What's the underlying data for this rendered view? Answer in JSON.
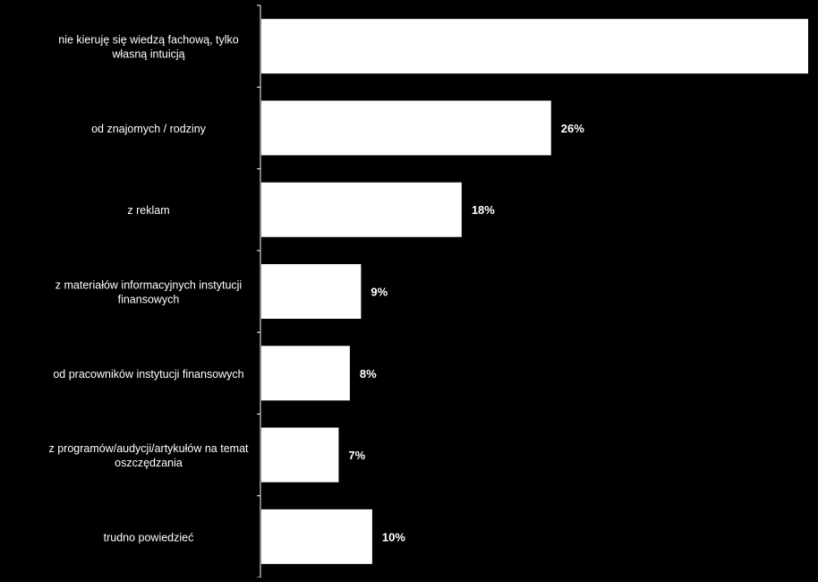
{
  "chart_data": {
    "type": "bar",
    "orientation": "horizontal",
    "categories": [
      "nie kieruję się wiedzą fachową, tylko własną intuicją",
      "od znajomych / rodziny",
      "z reklam",
      "z materiałów informacyjnych instytucji finansowych",
      "od pracowników instytucji finansowych",
      "z programów/audycji/artykułów na temat oszczędzania",
      "trudno powiedzieć"
    ],
    "category_lines": [
      [
        "nie kieruję się wiedzą fachową, tylko",
        "własną intuicją"
      ],
      [
        "od znajomych / rodziny"
      ],
      [
        "z reklam"
      ],
      [
        "z materiałów informacyjnych instytucji",
        "finansowych"
      ],
      [
        "od pracowników instytucji finansowych"
      ],
      [
        "z programów/audycji/artykułów na temat",
        "oszczędzania"
      ],
      [
        "trudno powiedzieć"
      ]
    ],
    "values": [
      49,
      26,
      18,
      9,
      8,
      7,
      10
    ],
    "value_labels": [
      "%",
      "26%",
      "18%",
      "9%",
      "8%",
      "7%",
      "10%"
    ],
    "unit": "%",
    "xlim": [
      0,
      49
    ],
    "title": "",
    "xlabel": "",
    "ylabel": "",
    "grid": false,
    "legend": "none",
    "colors": {
      "background": "#000000",
      "bar": "#ffffff",
      "text": "#ffffff",
      "axis": "#ffffff"
    }
  }
}
